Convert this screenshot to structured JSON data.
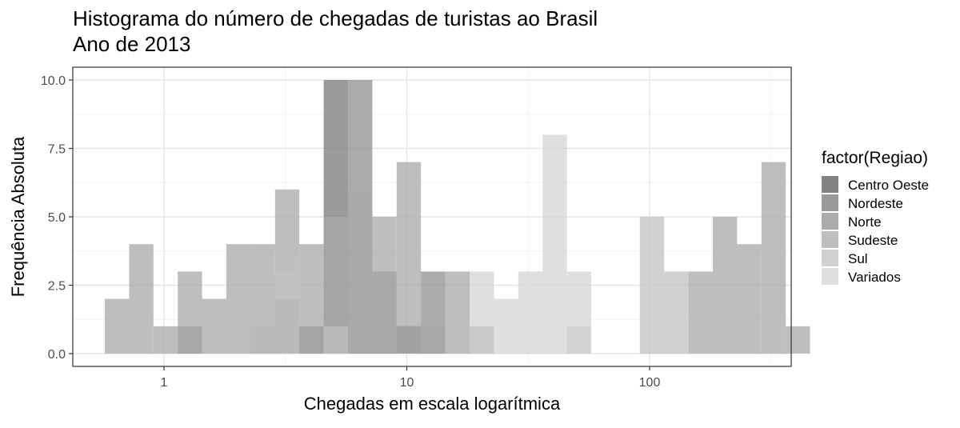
{
  "chart_data": {
    "type": "histogram",
    "title": "Histograma do número de chegadas de turistas ao Brasil",
    "subtitle": "Ano de 2013",
    "xlabel": "Chegadas em escala logarítmica",
    "ylabel": "Frequência Absoluta",
    "x_scale": "log10",
    "x_ticks": [
      {
        "value": 1,
        "label": "1"
      },
      {
        "value": 10,
        "label": "10"
      },
      {
        "value": 100,
        "label": "100"
      }
    ],
    "y_ticks": [
      {
        "value": 0,
        "label": "0.0"
      },
      {
        "value": 2.5,
        "label": "2.5"
      },
      {
        "value": 5,
        "label": "5.0"
      },
      {
        "value": 7.5,
        "label": "7.5"
      },
      {
        "value": 10,
        "label": "10.0"
      }
    ],
    "ylim": [
      0,
      10
    ],
    "grid": true,
    "stacking": "overlapping",
    "legend": {
      "title": "factor(Regiao)",
      "placement": "right"
    },
    "series": [
      {
        "name": "Centro Oeste",
        "color": "#595959",
        "alpha": 0.75,
        "counts": [
          0,
          0,
          0,
          0,
          0,
          0,
          0,
          0,
          0,
          0,
          0,
          0,
          1,
          0,
          0,
          0,
          0,
          0,
          0,
          0,
          0,
          0,
          0,
          0,
          0,
          0,
          0,
          0,
          0
        ]
      },
      {
        "name": "Nordeste",
        "color": "#7a7a7a",
        "alpha": 0.75,
        "counts": [
          0,
          0,
          0,
          0,
          0,
          0,
          1,
          2,
          1,
          10,
          0,
          0,
          0,
          0,
          0,
          0,
          0,
          0,
          0,
          0,
          0,
          0,
          0,
          0,
          0,
          0,
          0,
          0,
          0
        ]
      },
      {
        "name": "Norte",
        "color": "#8f8f8f",
        "alpha": 0.75,
        "counts": [
          0,
          0,
          0,
          1,
          0,
          0,
          1,
          0,
          0,
          0,
          10,
          3,
          1,
          3,
          0,
          1,
          0,
          0,
          0,
          0,
          0,
          0,
          0,
          0,
          0,
          0,
          0,
          0,
          0
        ]
      },
      {
        "name": "Sudeste",
        "color": "#a8a8a8",
        "alpha": 0.75,
        "counts": [
          2,
          4,
          1,
          3,
          2,
          4,
          4,
          6,
          4,
          5,
          6,
          5,
          7,
          1,
          3,
          0,
          0,
          0,
          0,
          0,
          0,
          0,
          0,
          0,
          3,
          5,
          4,
          7,
          1
        ]
      },
      {
        "name": "Sul",
        "color": "#c2c2c2",
        "alpha": 0.75,
        "counts": [
          0,
          0,
          0,
          0,
          0,
          0,
          1,
          3,
          0,
          1,
          0,
          0,
          0,
          0,
          0,
          0,
          0,
          0,
          0,
          1,
          0,
          0,
          5,
          3,
          0,
          0,
          0,
          0,
          0
        ]
      },
      {
        "name": "Variados",
        "color": "#d4d4d4",
        "alpha": 0.75,
        "counts": [
          0,
          0,
          0,
          0,
          0,
          0,
          0,
          0,
          0,
          0,
          0,
          0,
          0,
          0,
          0,
          3,
          2,
          3,
          8,
          3,
          0,
          0,
          0,
          0,
          0,
          0,
          0,
          0,
          0
        ]
      }
    ]
  }
}
